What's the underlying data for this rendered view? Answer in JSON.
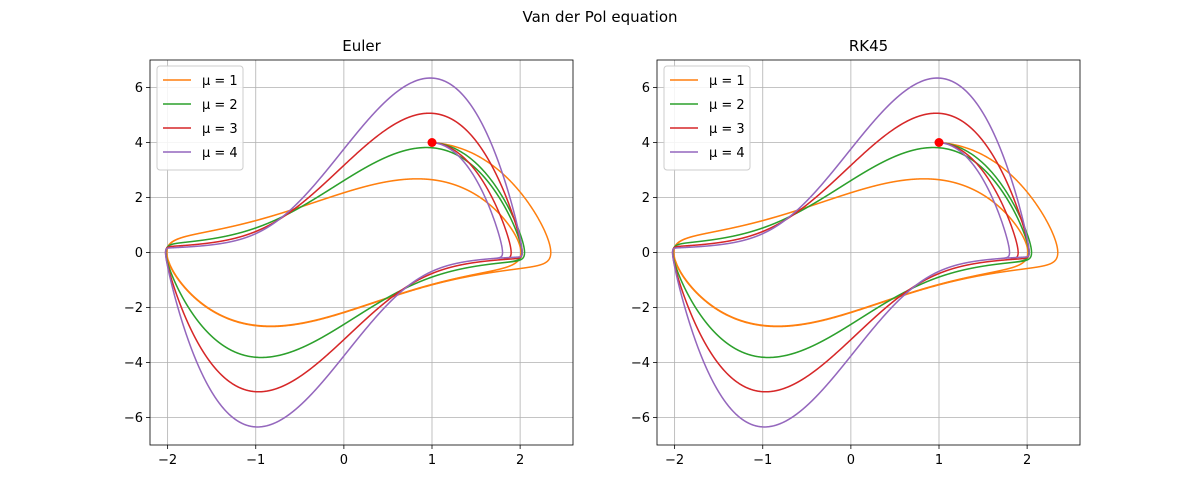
{
  "figure": {
    "suptitle": "Van der Pol equation",
    "start_point_color": "#ff0000",
    "grid_color": "#b0b0b0"
  },
  "chart_data": [
    {
      "type": "line",
      "title": "Euler",
      "xlabel": "",
      "ylabel": "",
      "xlim": [
        -2.2,
        2.6
      ],
      "ylim": [
        -7,
        7
      ],
      "xticks": [
        -2,
        -1,
        0,
        1,
        2
      ],
      "yticks": [
        -6,
        -4,
        -2,
        0,
        2,
        4,
        6
      ],
      "grid": true,
      "legend_position": "top-left",
      "start_point": {
        "x": 1,
        "y": 4
      },
      "series": [
        {
          "name": "μ = 1",
          "color": "#ff7f0e",
          "mu": 1
        },
        {
          "name": "μ = 2",
          "color": "#2ca02c",
          "mu": 2
        },
        {
          "name": "μ = 3",
          "color": "#d62728",
          "mu": 3
        },
        {
          "name": "μ = 4",
          "color": "#9467bd",
          "mu": 4
        }
      ]
    },
    {
      "type": "line",
      "title": "RK45",
      "xlabel": "",
      "ylabel": "",
      "xlim": [
        -2.2,
        2.6
      ],
      "ylim": [
        -7,
        7
      ],
      "xticks": [
        -2,
        -1,
        0,
        1,
        2
      ],
      "yticks": [
        -6,
        -4,
        -2,
        0,
        2,
        4,
        6
      ],
      "grid": true,
      "legend_position": "top-left",
      "start_point": {
        "x": 1,
        "y": 4
      },
      "series": [
        {
          "name": "μ = 1",
          "color": "#ff7f0e",
          "mu": 1
        },
        {
          "name": "μ = 2",
          "color": "#2ca02c",
          "mu": 2
        },
        {
          "name": "μ = 3",
          "color": "#d62728",
          "mu": 3
        },
        {
          "name": "μ = 4",
          "color": "#9467bd",
          "mu": 4
        }
      ]
    }
  ]
}
